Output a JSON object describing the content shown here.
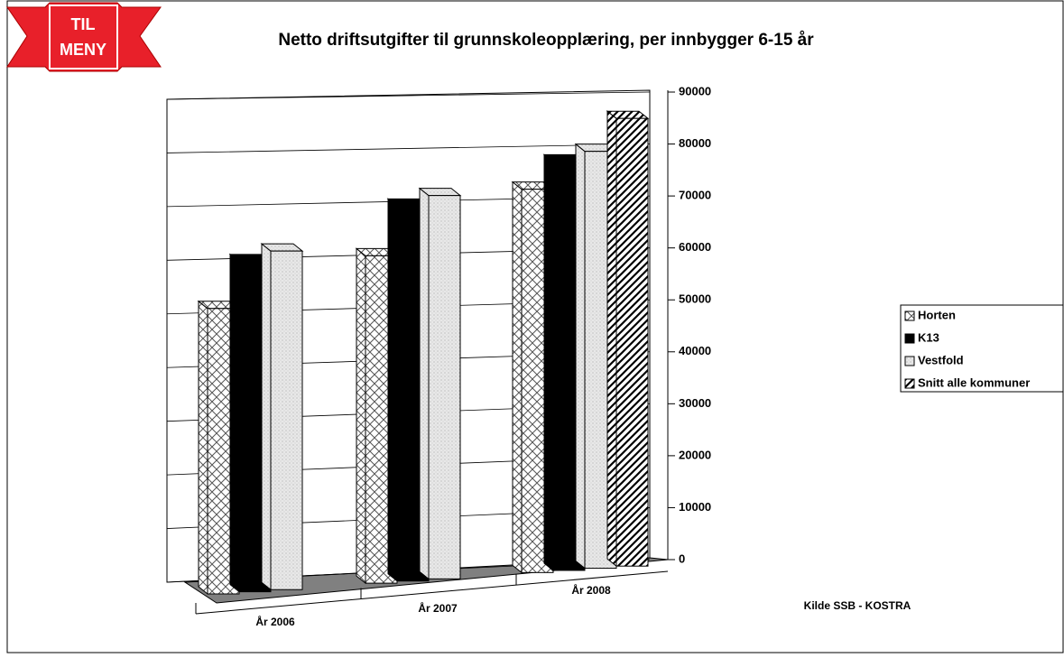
{
  "menu_button": {
    "lines": [
      "TIL",
      "MENY"
    ]
  },
  "chart_data": {
    "type": "bar3d",
    "title": "Netto driftsutgifter til grunnskoleopplæring, per innbygger 6-15 år",
    "source": "Kilde SSB - KOSTRA",
    "categories": [
      "År 2006",
      "År 2007",
      "År 2008"
    ],
    "series": [
      {
        "name": "Horten",
        "color": "#ffffff",
        "values": [
          51000,
          58500,
          68500
        ]
      },
      {
        "name": "K13",
        "color": "#000000",
        "values": [
          59000,
          67000,
          73000
        ]
      },
      {
        "name": "Vestfold",
        "color": "#e6e6e6",
        "values": [
          60500,
          68500,
          74500
        ]
      },
      {
        "name": "Snitt alle kommuner",
        "color": "#ffffff",
        "values": [
          null,
          null,
          80000
        ]
      }
    ],
    "ylim": [
      0,
      90000
    ],
    "yticks": [
      0,
      10000,
      20000,
      30000,
      40000,
      50000,
      60000,
      70000,
      80000,
      90000
    ],
    "grid": true,
    "legend": "right"
  }
}
